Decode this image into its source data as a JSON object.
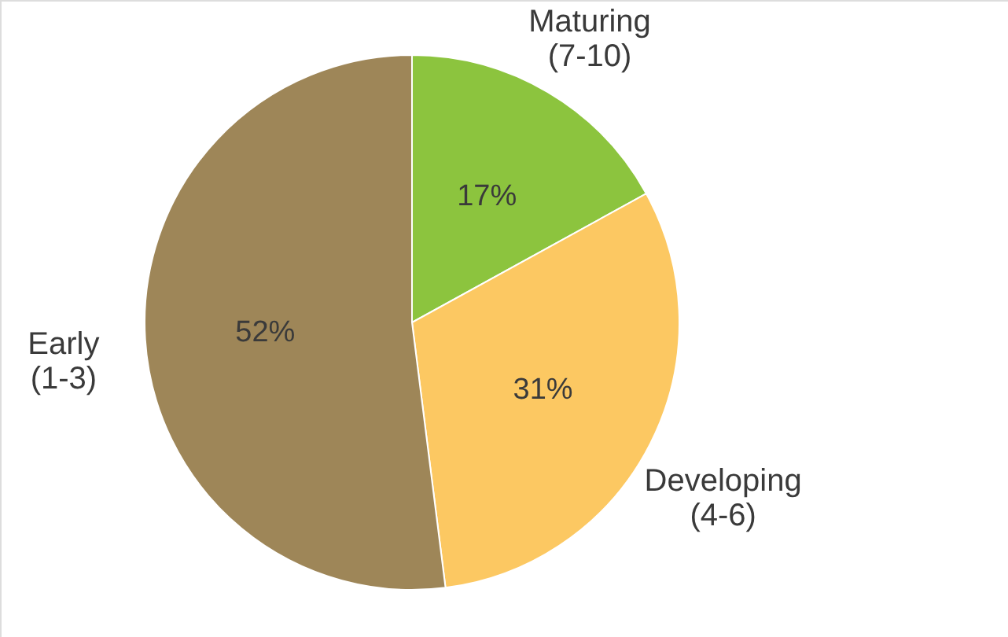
{
  "chart_data": {
    "type": "pie",
    "categories": [
      "Maturing\n(7-10)",
      "Developing\n(4-6)",
      "Early\n(1-3)"
    ],
    "values": [
      17,
      31,
      52
    ],
    "colors": [
      "#8cc43e",
      "#fcc862",
      "#9e8658"
    ],
    "value_labels": [
      "17%",
      "31%",
      "52%"
    ]
  }
}
